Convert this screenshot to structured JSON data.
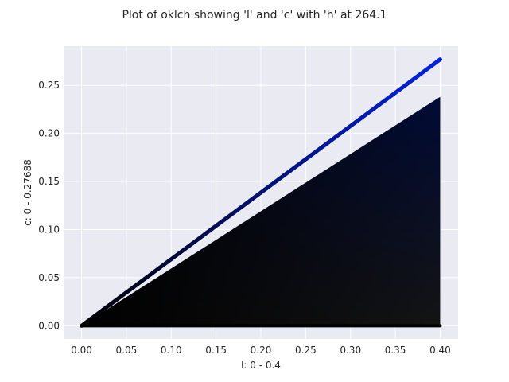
{
  "chart_data": {
    "type": "scatter",
    "title": "Plot of oklch showing 'l' and 'c' with 'h' at 264.1",
    "xlabel": "l: 0 - 0.4",
    "ylabel": "c: 0 - 0.27688",
    "xlim": [
      -0.02,
      0.42
    ],
    "ylim": [
      -0.0138,
      0.2907
    ],
    "grid": true,
    "x_ticks": [
      0.0,
      0.05,
      0.1,
      0.15,
      0.2,
      0.25,
      0.3,
      0.35,
      0.4
    ],
    "x_tick_labels": [
      "0.00",
      "0.05",
      "0.10",
      "0.15",
      "0.20",
      "0.25",
      "0.30",
      "0.35",
      "0.40"
    ],
    "y_ticks": [
      0.0,
      0.05,
      0.1,
      0.15,
      0.2,
      0.25
    ],
    "y_tick_labels": [
      "0.00",
      "0.05",
      "0.10",
      "0.15",
      "0.20",
      "0.25"
    ],
    "hue": 264.1,
    "series": [
      {
        "region": "gamut-fill",
        "vertices": [
          [
            0.0,
            0.0
          ],
          [
            0.4,
            0.0
          ],
          [
            0.4,
            0.238
          ]
        ],
        "color_l0": "#000000",
        "color_high_c": "#0025c0",
        "color_low_c": "#464646"
      },
      {
        "region": "max-chroma-edge",
        "x": [
          0.0,
          0.4
        ],
        "y": [
          0.0,
          0.2769
        ],
        "color_start": "#000000",
        "color_end": "#0022dd"
      }
    ]
  },
  "colors": {
    "plot_background": "#eaeaf2",
    "grid": "#ffffff",
    "text": "#262626"
  }
}
